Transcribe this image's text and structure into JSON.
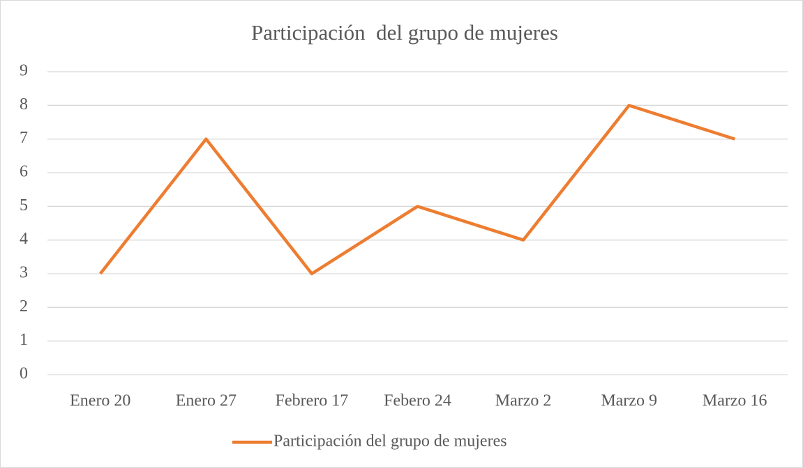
{
  "chart_data": {
    "type": "line",
    "title": "Participación  del grupo de mujeres",
    "categories": [
      "Enero 20",
      "Enero 27",
      "Febrero 17",
      "Febero 24",
      "Marzo 2",
      "Marzo 9",
      "Marzo 16"
    ],
    "series": [
      {
        "name": "Participación del grupo de mujeres",
        "color": "#ed7d31",
        "values": [
          3,
          7,
          3,
          5,
          4,
          8,
          7
        ]
      }
    ],
    "ylim": [
      0,
      9
    ],
    "yticks": [
      0,
      1,
      2,
      3,
      4,
      5,
      6,
      7,
      8,
      9
    ],
    "grid": true,
    "legend": "bottom"
  }
}
